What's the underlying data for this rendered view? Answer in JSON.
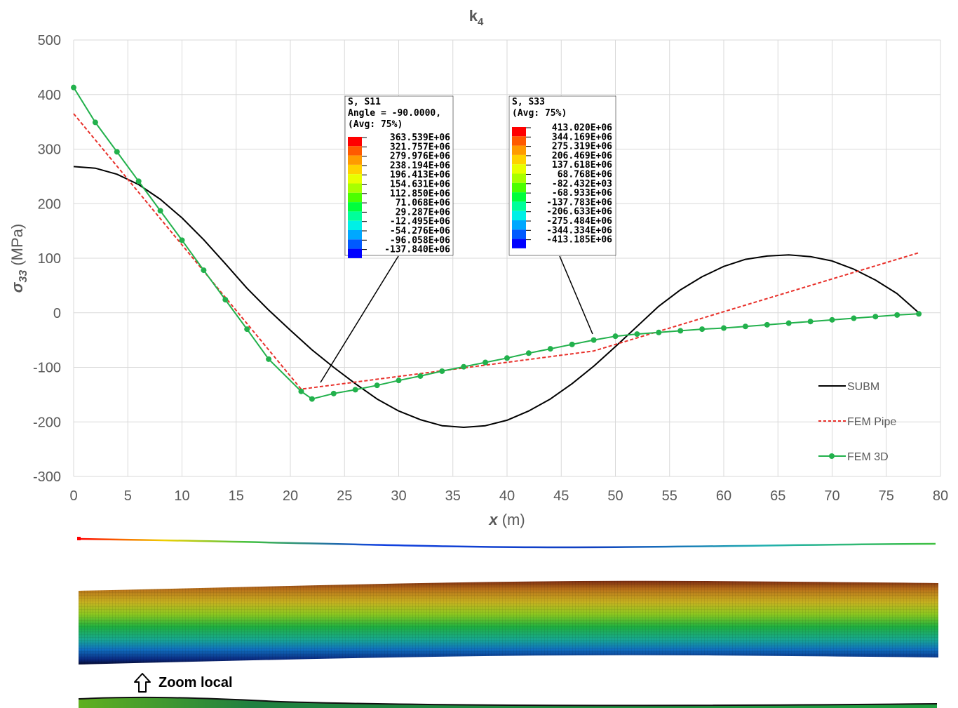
{
  "chart_data": {
    "type": "line",
    "title": "k",
    "title_subscript": "4",
    "ylabel_symbol": "σ",
    "ylabel_subscript": "33",
    "ylabel_unit": " (MPa)",
    "xlabel_symbol": "x",
    "xlabel_unit": " (m)",
    "xlim": [
      0,
      80
    ],
    "ylim": [
      -300,
      500
    ],
    "x_ticks": [
      0,
      5,
      10,
      15,
      20,
      25,
      30,
      35,
      40,
      45,
      50,
      55,
      60,
      65,
      70,
      75,
      80
    ],
    "y_ticks": [
      -300,
      -200,
      -100,
      0,
      100,
      200,
      300,
      400,
      500
    ],
    "grid": true,
    "legend_position": "bottom-right",
    "series": [
      {
        "name": "SUBM",
        "color": "#000000",
        "style": "solid",
        "x": [
          0,
          2,
          4,
          6,
          8,
          10,
          12,
          14,
          16,
          18,
          20,
          22,
          24,
          26,
          28,
          30,
          32,
          34,
          36,
          38,
          40,
          42,
          44,
          46,
          48,
          50,
          52,
          54,
          56,
          58,
          60,
          62,
          64,
          66,
          68,
          70,
          72,
          74,
          76,
          78
        ],
        "y": [
          268,
          265,
          254,
          235,
          208,
          174,
          134,
          90,
          45,
          5,
          -32,
          -68,
          -100,
          -130,
          -158,
          -180,
          -196,
          -207,
          -210,
          -207,
          -197,
          -180,
          -158,
          -130,
          -98,
          -62,
          -25,
          12,
          42,
          66,
          85,
          98,
          104,
          106,
          103,
          95,
          80,
          60,
          35,
          0
        ]
      },
      {
        "name": "FEM Pipe",
        "color": "#e8302a",
        "style": "dashed",
        "x": [
          0,
          21,
          48,
          78
        ],
        "y": [
          365,
          -140,
          -70,
          110
        ]
      },
      {
        "name": "FEM 3D",
        "color": "#22b14c",
        "style": "solid-markers",
        "x": [
          0,
          2,
          4,
          6,
          8,
          10,
          12,
          14,
          16,
          18,
          21,
          22,
          24,
          26,
          28,
          30,
          32,
          34,
          36,
          38,
          40,
          42,
          44,
          46,
          48,
          50,
          52,
          54,
          56,
          58,
          60,
          62,
          64,
          66,
          68,
          70,
          72,
          74,
          76,
          78
        ],
        "y": [
          413,
          349,
          295,
          241,
          187,
          133,
          78,
          24,
          -30,
          -85,
          -144,
          -158,
          -148,
          -141,
          -133,
          -124,
          -116,
          -107,
          -99,
          -91,
          -83,
          -74,
          -66,
          -58,
          -50,
          -43,
          -39,
          -36,
          -33,
          -30,
          -28,
          -25,
          -22,
          -19,
          -16,
          -13,
          -10,
          -7,
          -4,
          -2
        ]
      }
    ]
  },
  "colormap_s11": {
    "title_lines": [
      "S, S11",
      "Angle = -90.0000,",
      "(Avg: 75%)"
    ],
    "values": [
      "363.539E+06",
      "321.757E+06",
      "279.976E+06",
      "238.194E+06",
      "196.413E+06",
      "154.631E+06",
      "112.850E+06",
      "71.068E+06",
      "29.287E+06",
      "-12.495E+06",
      "-54.276E+06",
      "-96.058E+06",
      "-137.840E+06"
    ]
  },
  "colormap_s33": {
    "title_lines": [
      "S, S33",
      "(Avg: 75%)"
    ],
    "values": [
      "413.020E+06",
      "344.169E+06",
      "275.319E+06",
      "206.469E+06",
      "137.618E+06",
      "68.768E+06",
      "-82.432E+03",
      "-68.933E+06",
      "-137.783E+06",
      "-206.633E+06",
      "-275.484E+06",
      "-344.334E+06",
      "-413.185E+06"
    ]
  },
  "colormap_colors": [
    "#ff0000",
    "#ff5a00",
    "#ff9b00",
    "#ffd200",
    "#e8ff00",
    "#a8ff00",
    "#4cff00",
    "#00ff3c",
    "#00ff9a",
    "#00f0e6",
    "#00a8ff",
    "#005aff",
    "#0000ff"
  ],
  "zoom_label": "Zoom local",
  "icons": {
    "zoom": "up-arrow-icon"
  }
}
